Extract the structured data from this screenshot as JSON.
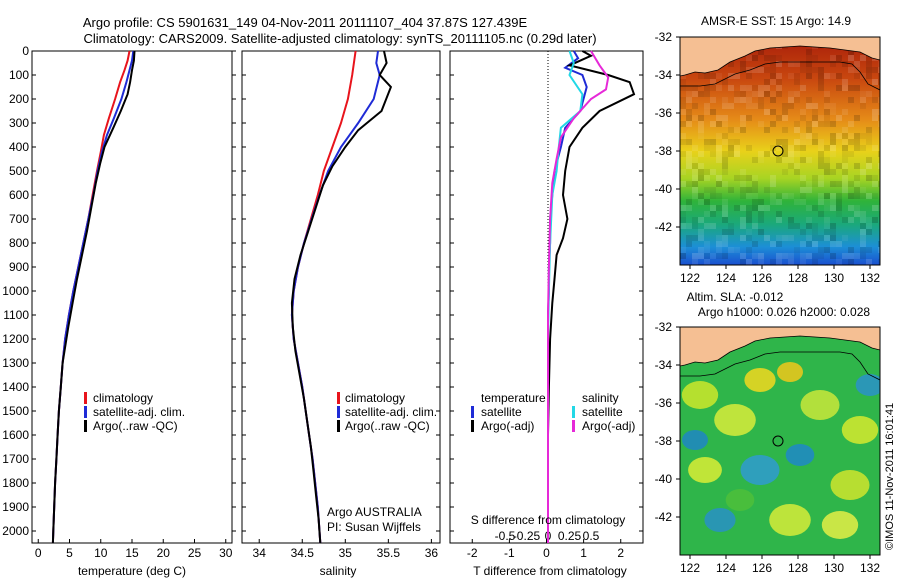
{
  "title": {
    "line1": "Argo profile: CS 5901631_149 04-Nov-2011 20111107_404 37.87S 127.439E",
    "line2": "Climatology: CARS2009. Satellite-adjusted climatology: synTS_20111105.nc (0.29d later)"
  },
  "colors": {
    "climatology": "#e8141c",
    "satellite": "#1f2bd6",
    "argo": "#000000",
    "satellite_s": "#22d8e6",
    "argo_s": "#e629d8",
    "land": "#f5bf93"
  },
  "depth_axis": {
    "ticks": [
      "0",
      "100",
      "200",
      "300",
      "400",
      "500",
      "600",
      "700",
      "800",
      "900",
      "1000",
      "1100",
      "1200",
      "1300",
      "1400",
      "1500",
      "1600",
      "1700",
      "1800",
      "1900",
      "2000"
    ],
    "ylim": [
      0,
      2050
    ]
  },
  "panel1": {
    "xlabel": "temperature (deg C)",
    "ticks": [
      "0",
      "5",
      "10",
      "15",
      "20",
      "25",
      "30"
    ],
    "legend": [
      "climatology",
      "satellite-adj. clim.",
      "Argo(..raw -QC)"
    ]
  },
  "panel2": {
    "xlabel": "salinity",
    "ticks": [
      "34",
      "34.5",
      "35",
      "35.5",
      "36"
    ],
    "legend": [
      "climatology",
      "satellite-adj. clim.",
      "Argo(..raw -QC)"
    ],
    "note1": "Argo AUSTRALIA",
    "note2": "PI: Susan Wijffels"
  },
  "panel3": {
    "xlabel_bottom": "T difference from climatology",
    "xlabel_top": "S difference from climatology",
    "ticks_t": [
      "-2",
      "-1",
      "0",
      "1",
      "2"
    ],
    "ticks_s": [
      "-0.5",
      "-0.25",
      "0",
      "0.25",
      "0.5"
    ],
    "legend_t_title": "temperature",
    "legend_t": [
      "satellite",
      "Argo(-adj)"
    ],
    "legend_s_title": "salinity",
    "legend_s": [
      "satellite",
      "Argo(-adj)"
    ]
  },
  "map_top": {
    "title": "AMSR-E SST: 15  Argo: 14.9",
    "lat_ticks": [
      "-32",
      "-34",
      "-36",
      "-38",
      "-40",
      "-42"
    ],
    "lon_ticks": [
      "122",
      "124",
      "126",
      "128",
      "130",
      "132"
    ]
  },
  "map_bottom": {
    "title1": "Altim. SLA: -0.012",
    "title2": "Argo h1000: 0.026 h2000: 0.028",
    "lat_ticks": [
      "-32",
      "-34",
      "-36",
      "-38",
      "-40",
      "-42"
    ],
    "lon_ticks": [
      "122",
      "124",
      "126",
      "128",
      "130",
      "132"
    ]
  },
  "credit": "©IMOS 11-Nov-2011 16:01:41",
  "chart_data": [
    {
      "type": "line",
      "xlabel": "temperature (deg C)",
      "ylabel": "",
      "xlim": [
        -1,
        31
      ],
      "ylim": [
        2050,
        0
      ],
      "series": [
        {
          "name": "climatology",
          "color": "red",
          "points": [
            [
              14.6,
              0
            ],
            [
              14.3,
              40
            ],
            [
              13.8,
              80
            ],
            [
              13.1,
              130
            ],
            [
              12.3,
              200
            ],
            [
              11.3,
              280
            ],
            [
              10.5,
              350
            ],
            [
              10.0,
              420
            ],
            [
              9.4,
              500
            ],
            [
              8.7,
              600
            ],
            [
              8.0,
              700
            ],
            [
              7.2,
              800
            ],
            [
              6.4,
              900
            ],
            [
              5.6,
              1000
            ],
            [
              4.9,
              1100
            ],
            [
              4.3,
              1200
            ],
            [
              3.9,
              1300
            ],
            [
              3.6,
              1400
            ],
            [
              3.3,
              1500
            ],
            [
              3.1,
              1600
            ],
            [
              2.9,
              1700
            ],
            [
              2.7,
              1800
            ],
            [
              2.55,
              1900
            ],
            [
              2.4,
              2000
            ],
            [
              2.35,
              2050
            ]
          ]
        },
        {
          "name": "satellite-adj. clim.",
          "color": "blue",
          "points": [
            [
              15.2,
              0
            ],
            [
              15.0,
              40
            ],
            [
              14.6,
              80
            ],
            [
              14.1,
              130
            ],
            [
              13.3,
              200
            ],
            [
              12.1,
              280
            ],
            [
              11.0,
              350
            ],
            [
              10.2,
              420
            ],
            [
              9.5,
              500
            ],
            [
              8.8,
              600
            ],
            [
              8.0,
              700
            ],
            [
              7.2,
              800
            ],
            [
              6.4,
              900
            ],
            [
              5.6,
              1000
            ],
            [
              4.9,
              1100
            ],
            [
              4.3,
              1200
            ],
            [
              3.9,
              1300
            ],
            [
              3.6,
              1400
            ],
            [
              3.3,
              1500
            ],
            [
              3.1,
              1600
            ],
            [
              2.9,
              1700
            ],
            [
              2.7,
              1800
            ],
            [
              2.55,
              1900
            ],
            [
              2.4,
              2000
            ],
            [
              2.35,
              2050
            ]
          ]
        },
        {
          "name": "Argo(..raw -QC)",
          "color": "black",
          "points": [
            [
              15.4,
              0
            ],
            [
              15.3,
              40
            ],
            [
              15.0,
              80
            ],
            [
              14.7,
              130
            ],
            [
              14.3,
              180
            ],
            [
              13.2,
              250
            ],
            [
              12.0,
              320
            ],
            [
              10.6,
              400
            ],
            [
              9.9,
              470
            ],
            [
              9.2,
              550
            ],
            [
              8.5,
              650
            ],
            [
              7.8,
              750
            ],
            [
              7.0,
              850
            ],
            [
              6.2,
              950
            ],
            [
              5.5,
              1050
            ],
            [
              4.8,
              1150
            ],
            [
              4.2,
              1250
            ],
            [
              3.9,
              1300
            ],
            [
              3.6,
              1400
            ],
            [
              3.3,
              1500
            ],
            [
              3.1,
              1600
            ],
            [
              2.9,
              1700
            ],
            [
              2.7,
              1800
            ],
            [
              2.55,
              1900
            ],
            [
              2.4,
              2000
            ],
            [
              2.35,
              2050
            ]
          ]
        }
      ]
    },
    {
      "type": "line",
      "xlabel": "salinity",
      "ylabel": "",
      "xlim": [
        33.8,
        36.1
      ],
      "ylim": [
        2050,
        0
      ],
      "series": [
        {
          "name": "climatology",
          "color": "red",
          "points": [
            [
              35.12,
              0
            ],
            [
              35.1,
              50
            ],
            [
              35.08,
              100
            ],
            [
              35.03,
              200
            ],
            [
              34.95,
              300
            ],
            [
              34.85,
              400
            ],
            [
              34.75,
              500
            ],
            [
              34.68,
              600
            ],
            [
              34.6,
              700
            ],
            [
              34.52,
              800
            ],
            [
              34.45,
              900
            ],
            [
              34.4,
              1000
            ],
            [
              34.38,
              1100
            ],
            [
              34.4,
              1200
            ],
            [
              34.45,
              1300
            ],
            [
              34.5,
              1400
            ],
            [
              34.54,
              1500
            ],
            [
              34.58,
              1600
            ],
            [
              34.62,
              1700
            ],
            [
              34.65,
              1800
            ],
            [
              34.68,
              1900
            ],
            [
              34.7,
              2000
            ],
            [
              34.71,
              2050
            ]
          ]
        },
        {
          "name": "satellite-adj. clim.",
          "color": "blue",
          "points": [
            [
              35.38,
              0
            ],
            [
              35.36,
              50
            ],
            [
              35.4,
              100
            ],
            [
              35.33,
              200
            ],
            [
              35.15,
              300
            ],
            [
              34.95,
              400
            ],
            [
              34.8,
              500
            ],
            [
              34.7,
              600
            ],
            [
              34.61,
              700
            ],
            [
              34.52,
              800
            ],
            [
              34.45,
              900
            ],
            [
              34.4,
              1000
            ],
            [
              34.38,
              1100
            ],
            [
              34.4,
              1200
            ],
            [
              34.45,
              1300
            ],
            [
              34.5,
              1400
            ],
            [
              34.54,
              1500
            ],
            [
              34.58,
              1600
            ],
            [
              34.62,
              1700
            ],
            [
              34.65,
              1800
            ],
            [
              34.68,
              1900
            ],
            [
              34.7,
              2000
            ],
            [
              34.71,
              2050
            ]
          ]
        },
        {
          "name": "Argo(..raw -QC)",
          "color": "black",
          "points": [
            [
              35.45,
              0
            ],
            [
              35.48,
              50
            ],
            [
              35.4,
              100
            ],
            [
              35.53,
              150
            ],
            [
              35.42,
              250
            ],
            [
              35.15,
              330
            ],
            [
              35.0,
              400
            ],
            [
              34.85,
              480
            ],
            [
              34.74,
              560
            ],
            [
              34.66,
              650
            ],
            [
              34.57,
              750
            ],
            [
              34.48,
              850
            ],
            [
              34.41,
              950
            ],
            [
              34.38,
              1050
            ],
            [
              34.39,
              1150
            ],
            [
              34.42,
              1250
            ],
            [
              34.47,
              1350
            ],
            [
              34.52,
              1450
            ],
            [
              34.56,
              1550
            ],
            [
              34.6,
              1650
            ],
            [
              34.63,
              1750
            ],
            [
              34.66,
              1850
            ],
            [
              34.69,
              1950
            ],
            [
              34.71,
              2050
            ]
          ]
        }
      ]
    },
    {
      "type": "line",
      "xlabel": "T difference from climatology",
      "ylabel": "",
      "xlim": [
        -2.6,
        2.6
      ],
      "ylim": [
        2050,
        0
      ],
      "series": [
        {
          "name": "temperature satellite",
          "color": "blue",
          "points": [
            [
              0.6,
              0
            ],
            [
              0.7,
              30
            ],
            [
              0.4,
              70
            ],
            [
              0.8,
              100
            ],
            [
              0.9,
              150
            ],
            [
              0.75,
              250
            ],
            [
              0.4,
              320
            ],
            [
              0.3,
              400
            ],
            [
              0.15,
              500
            ],
            [
              0.1,
              600
            ],
            [
              0.05,
              700
            ],
            [
              0.05,
              800
            ],
            [
              0.02,
              900
            ],
            [
              0.02,
              1000
            ],
            [
              0,
              1100
            ],
            [
              0,
              1300
            ],
            [
              0,
              1500
            ],
            [
              0,
              1700
            ],
            [
              0,
              1900
            ],
            [
              0,
              2050
            ]
          ]
        },
        {
          "name": "temperature Argo(-adj)",
          "color": "black",
          "points": [
            [
              0.8,
              0
            ],
            [
              1.0,
              20
            ],
            [
              0.5,
              60
            ],
            [
              1.4,
              100
            ],
            [
              1.9,
              130
            ],
            [
              2.0,
              180
            ],
            [
              1.2,
              250
            ],
            [
              0.8,
              320
            ],
            [
              0.5,
              400
            ],
            [
              0.4,
              500
            ],
            [
              0.35,
              600
            ],
            [
              0.45,
              700
            ],
            [
              0.35,
              780
            ],
            [
              0.2,
              850
            ],
            [
              0.15,
              950
            ],
            [
              0.1,
              1050
            ],
            [
              0.05,
              1200
            ],
            [
              0.02,
              1400
            ],
            [
              0,
              1600
            ],
            [
              0,
              1800
            ],
            [
              0,
              2050
            ]
          ]
        },
        {
          "name": "salinity satellite",
          "color": "cyan",
          "points": [
            [
              0.5,
              0
            ],
            [
              0.6,
              50
            ],
            [
              0.5,
              100
            ],
            [
              0.8,
              180
            ],
            [
              0.75,
              250
            ],
            [
              0.3,
              320
            ],
            [
              0.25,
              400
            ],
            [
              0.2,
              500
            ],
            [
              0.1,
              600
            ],
            [
              0.05,
              800
            ],
            [
              0.02,
              1000
            ],
            [
              0,
              1200
            ],
            [
              0,
              1500
            ],
            [
              0,
              2050
            ]
          ]
        },
        {
          "name": "salinity Argo(-adj)",
          "color": "magenta",
          "points": [
            [
              1.0,
              0
            ],
            [
              1.2,
              60
            ],
            [
              1.4,
              110
            ],
            [
              1.35,
              160
            ],
            [
              1.0,
              200
            ],
            [
              0.6,
              280
            ],
            [
              0.3,
              360
            ],
            [
              0.2,
              450
            ],
            [
              0.1,
              550
            ],
            [
              0.05,
              700
            ],
            [
              0.02,
              900
            ],
            [
              0,
              1100
            ],
            [
              0,
              1500
            ],
            [
              0,
              2050
            ]
          ]
        }
      ]
    }
  ]
}
